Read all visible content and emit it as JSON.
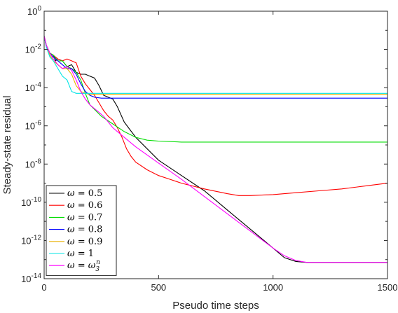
{
  "chart_data": {
    "type": "line",
    "xlabel": "Pseudo time steps",
    "ylabel": "Steady-state residual",
    "xlim": [
      0,
      1500
    ],
    "ylim_exponents": [
      -14,
      0
    ],
    "yscale": "log",
    "grid": false,
    "legend_placement": "bottom-left",
    "x_ticks": [
      "0",
      "500",
      "1000",
      "1500"
    ],
    "y_ticks": [
      {
        "base": "10",
        "exp": "0"
      },
      {
        "base": "10",
        "exp": "-2"
      },
      {
        "base": "10",
        "exp": "-4"
      },
      {
        "base": "10",
        "exp": "-6"
      },
      {
        "base": "10",
        "exp": "-8"
      },
      {
        "base": "10",
        "exp": "-10"
      },
      {
        "base": "10",
        "exp": "-12"
      },
      {
        "base": "10",
        "exp": "-14"
      }
    ],
    "series": [
      {
        "name": "ω = 0.5",
        "color": "#000000",
        "points": [
          [
            0,
            -1.3
          ],
          [
            10,
            -1.9
          ],
          [
            25,
            -2.2
          ],
          [
            40,
            -2.3
          ],
          [
            50,
            -2.6
          ],
          [
            60,
            -2.5
          ],
          [
            80,
            -2.6
          ],
          [
            100,
            -2.9
          ],
          [
            120,
            -2.8
          ],
          [
            140,
            -3.2
          ],
          [
            160,
            -3.3
          ],
          [
            180,
            -3.3
          ],
          [
            200,
            -3.4
          ],
          [
            220,
            -3.5
          ],
          [
            240,
            -3.9
          ],
          [
            260,
            -4.4
          ],
          [
            280,
            -4.5
          ],
          [
            300,
            -4.6
          ],
          [
            320,
            -5.0
          ],
          [
            350,
            -5.8
          ],
          [
            400,
            -6.6
          ],
          [
            500,
            -7.8
          ],
          [
            600,
            -8.6
          ],
          [
            700,
            -9.4
          ],
          [
            800,
            -10.4
          ],
          [
            900,
            -11.4
          ],
          [
            1000,
            -12.4
          ],
          [
            1050,
            -12.9
          ],
          [
            1100,
            -13.1
          ],
          [
            1150,
            -13.15
          ],
          [
            1200,
            -13.15
          ],
          [
            1500,
            -13.15
          ]
        ]
      },
      {
        "name": "ω = 0.6",
        "color": "#ff0000",
        "points": [
          [
            0,
            -1.3
          ],
          [
            10,
            -1.8
          ],
          [
            25,
            -2.2
          ],
          [
            40,
            -2.3
          ],
          [
            60,
            -2.5
          ],
          [
            80,
            -2.6
          ],
          [
            100,
            -2.5
          ],
          [
            120,
            -2.6
          ],
          [
            140,
            -2.7
          ],
          [
            160,
            -3.4
          ],
          [
            180,
            -3.8
          ],
          [
            200,
            -4.1
          ],
          [
            220,
            -4.4
          ],
          [
            240,
            -4.8
          ],
          [
            260,
            -5.2
          ],
          [
            280,
            -5.5
          ],
          [
            300,
            -5.7
          ],
          [
            320,
            -6.1
          ],
          [
            340,
            -6.6
          ],
          [
            360,
            -7.2
          ],
          [
            380,
            -7.6
          ],
          [
            400,
            -7.9
          ],
          [
            450,
            -8.3
          ],
          [
            500,
            -8.6
          ],
          [
            550,
            -8.8
          ],
          [
            600,
            -9.0
          ],
          [
            700,
            -9.3
          ],
          [
            800,
            -9.55
          ],
          [
            850,
            -9.65
          ],
          [
            900,
            -9.65
          ],
          [
            1000,
            -9.6
          ],
          [
            1100,
            -9.5
          ],
          [
            1200,
            -9.4
          ],
          [
            1300,
            -9.3
          ],
          [
            1400,
            -9.15
          ],
          [
            1500,
            -9.0
          ]
        ]
      },
      {
        "name": "ω = 0.7",
        "color": "#00dd00",
        "points": [
          [
            0,
            -1.3
          ],
          [
            10,
            -1.8
          ],
          [
            25,
            -2.2
          ],
          [
            40,
            -2.3
          ],
          [
            60,
            -2.6
          ],
          [
            80,
            -2.6
          ],
          [
            100,
            -2.9
          ],
          [
            120,
            -3.0
          ],
          [
            140,
            -3.2
          ],
          [
            160,
            -3.6
          ],
          [
            180,
            -4.3
          ],
          [
            200,
            -4.9
          ],
          [
            250,
            -5.5
          ],
          [
            300,
            -5.9
          ],
          [
            350,
            -6.3
          ],
          [
            400,
            -6.6
          ],
          [
            450,
            -6.75
          ],
          [
            500,
            -6.8
          ],
          [
            600,
            -6.85
          ],
          [
            800,
            -6.85
          ],
          [
            1000,
            -6.85
          ],
          [
            1500,
            -6.85
          ]
        ]
      },
      {
        "name": "ω = 0.8",
        "color": "#0000ff",
        "points": [
          [
            0,
            -1.3
          ],
          [
            10,
            -1.8
          ],
          [
            25,
            -2.2
          ],
          [
            40,
            -2.4
          ],
          [
            60,
            -2.6
          ],
          [
            80,
            -2.8
          ],
          [
            100,
            -3.0
          ],
          [
            120,
            -3.0
          ],
          [
            140,
            -3.3
          ],
          [
            160,
            -3.8
          ],
          [
            180,
            -4.2
          ],
          [
            200,
            -4.4
          ],
          [
            220,
            -4.5
          ],
          [
            250,
            -4.55
          ],
          [
            300,
            -4.55
          ],
          [
            1500,
            -4.55
          ]
        ]
      },
      {
        "name": "ω = 0.9",
        "color": "#eab000",
        "points": [
          [
            0,
            -1.3
          ],
          [
            10,
            -1.8
          ],
          [
            25,
            -2.3
          ],
          [
            40,
            -2.6
          ],
          [
            60,
            -2.8
          ],
          [
            80,
            -3.0
          ],
          [
            100,
            -3.0
          ],
          [
            120,
            -3.3
          ],
          [
            140,
            -3.9
          ],
          [
            160,
            -4.2
          ],
          [
            180,
            -4.3
          ],
          [
            200,
            -4.35
          ],
          [
            300,
            -4.35
          ],
          [
            1500,
            -4.35
          ]
        ]
      },
      {
        "name": "ω = 1",
        "color": "#00e5e5",
        "points": [
          [
            0,
            -1.3
          ],
          [
            10,
            -1.9
          ],
          [
            25,
            -2.4
          ],
          [
            40,
            -2.6
          ],
          [
            60,
            -3.0
          ],
          [
            80,
            -3.4
          ],
          [
            100,
            -3.6
          ],
          [
            120,
            -4.2
          ],
          [
            140,
            -4.3
          ],
          [
            160,
            -4.3
          ],
          [
            200,
            -4.3
          ],
          [
            1500,
            -4.3
          ]
        ]
      },
      {
        "name": "ω = ω3n",
        "color": "#ff00ff",
        "points": [
          [
            0,
            -1.3
          ],
          [
            10,
            -1.8
          ],
          [
            25,
            -2.2
          ],
          [
            40,
            -2.5
          ],
          [
            60,
            -2.8
          ],
          [
            80,
            -3.0
          ],
          [
            100,
            -2.9
          ],
          [
            120,
            -3.1
          ],
          [
            140,
            -3.6
          ],
          [
            160,
            -4.2
          ],
          [
            180,
            -4.6
          ],
          [
            200,
            -4.9
          ],
          [
            220,
            -5.1
          ],
          [
            240,
            -5.3
          ],
          [
            260,
            -5.5
          ],
          [
            280,
            -5.8
          ],
          [
            300,
            -6.1
          ],
          [
            320,
            -6.3
          ],
          [
            340,
            -6.5
          ],
          [
            360,
            -6.7
          ],
          [
            400,
            -7.1
          ],
          [
            500,
            -7.95
          ],
          [
            600,
            -8.8
          ],
          [
            700,
            -9.7
          ],
          [
            800,
            -10.6
          ],
          [
            900,
            -11.5
          ],
          [
            1000,
            -12.4
          ],
          [
            1050,
            -12.8
          ],
          [
            1100,
            -13.05
          ],
          [
            1150,
            -13.15
          ],
          [
            1500,
            -13.15
          ]
        ]
      }
    ],
    "legend_entries": [
      {
        "prefix": "ω = ",
        "label": "0.5"
      },
      {
        "prefix": "ω = ",
        "label": "0.6"
      },
      {
        "prefix": "ω = ",
        "label": "0.7"
      },
      {
        "prefix": "ω = ",
        "label": "0.8"
      },
      {
        "prefix": "ω = ",
        "label": "0.9"
      },
      {
        "prefix": "ω = ",
        "label": "1"
      },
      {
        "prefix": "ω = ",
        "label": "ω",
        "sub": "3",
        "sup": "n"
      }
    ]
  }
}
